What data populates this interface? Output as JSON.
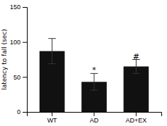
{
  "chart_data": {
    "type": "bar",
    "categories": [
      "WT",
      "AD",
      "AD+EX"
    ],
    "values": [
      87,
      43,
      65
    ],
    "errors": [
      18,
      12,
      10
    ],
    "color": "#111111",
    "ylabel": "latency to fall (sec)",
    "ylim": [
      0,
      150
    ],
    "yticks": [
      0,
      50,
      100,
      150
    ],
    "annotations": [
      {
        "text": "*",
        "x": "AD",
        "y": 56
      },
      {
        "text": "#",
        "x": "AD+EX",
        "y": 76
      }
    ]
  }
}
